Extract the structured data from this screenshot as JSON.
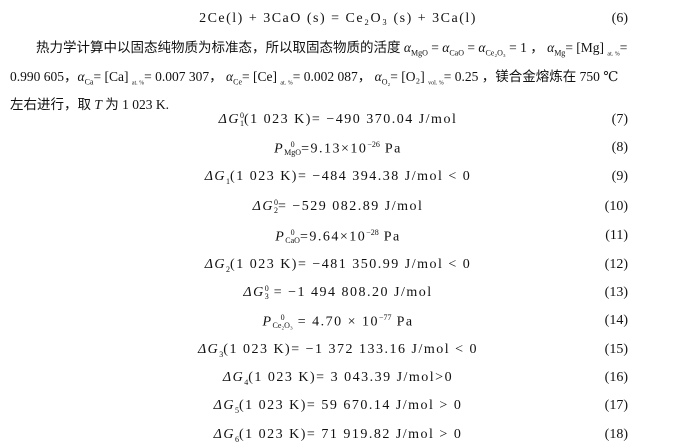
{
  "reaction6": {
    "text": "2Ce(l) +   3CaO (s) = Ce₂O₃ (s) +   3Ca(l)",
    "num": "(6)"
  },
  "paragraph": {
    "l1_a": "热力学计算中以固态纯物质为标准态，所以取固态物质的活度",
    "a": "α",
    "s_mgo": "MgO",
    "s_cao": "CaO",
    "s_ce2o3": "Ce₂O₃",
    "s_mg": "Mg",
    "s_ca": "Ca",
    "s_ce": "Ce",
    "s_o2": "O₂",
    "eq_one": " = 1 ，",
    "mg_val": "= [Mg]",
    "at": "at. %",
    "vol": "vol. %",
    "l2_mg": "= 0.990 605，",
    "ca_val": "= [Ca]",
    "ca_num": "= 0.007 307，",
    "ce_val": "= [Ce]",
    "ce_num": "= 0.002 087，",
    "o2_val": "= [O₂]",
    "o2_num": "= 0.25 ，镁合金熔炼在 750 ℃",
    "l3_a": "左右进行，取 ",
    "T": "T",
    "l3_b": " 为 1 023 K."
  },
  "equations": [
    {
      "sym": "ΔG",
      "sub": "1",
      "sup": "0",
      "body": "(1 023 K)= −490 370.04 J/mol",
      "num": "(7)"
    },
    {
      "sym": "P",
      "sub": "MgO",
      "sup": "0",
      "body": "=9.13×10",
      "exp": "−26",
      "tail": " Pa",
      "num": "(8)"
    },
    {
      "sym": "ΔG",
      "sub": "1",
      "body": "(1 023 K)= −484 394.38 J/mol < 0",
      "num": "(9)"
    },
    {
      "sym": "ΔG",
      "sub": "2",
      "sup": "0",
      "body": "= −529 082.89 J/mol",
      "num": "(10)"
    },
    {
      "sym": "P",
      "sub": "CaO",
      "sup": "0",
      "body": "=9.64×10",
      "exp": "−28",
      "tail": " Pa",
      "num": "(11)"
    },
    {
      "sym": "ΔG",
      "sub": "2",
      "body": "(1 023 K)= −481 350.99 J/mol < 0",
      "num": "(12)"
    },
    {
      "sym": "ΔG",
      "sub": "3",
      "sup": "0",
      "body": " = −1 494 808.20 J/mol",
      "num": "(13)"
    },
    {
      "sym": "P",
      "sub": "Ce₂O₃",
      "sup": "0",
      "body": " = 4.70 × 10",
      "exp": "−77",
      "tail": " Pa",
      "num": "(14)"
    },
    {
      "sym": "ΔG",
      "sub": "3",
      "body": "(1 023 K)= −1 372 133.16 J/mol < 0",
      "num": "(15)"
    },
    {
      "sym": "ΔG",
      "sub": "4",
      "body": "(1 023 K)= 3 043.39 J/mol>0",
      "num": "(16)"
    },
    {
      "sym": "ΔG",
      "sub": "5",
      "body": "(1 023 K)= 59 670.14 J/mol > 0",
      "num": "(17)"
    },
    {
      "sym": "ΔG",
      "sub": "6",
      "body": "(1 023 K)= 71 919.82 J/mol > 0",
      "num": "(18)"
    }
  ]
}
